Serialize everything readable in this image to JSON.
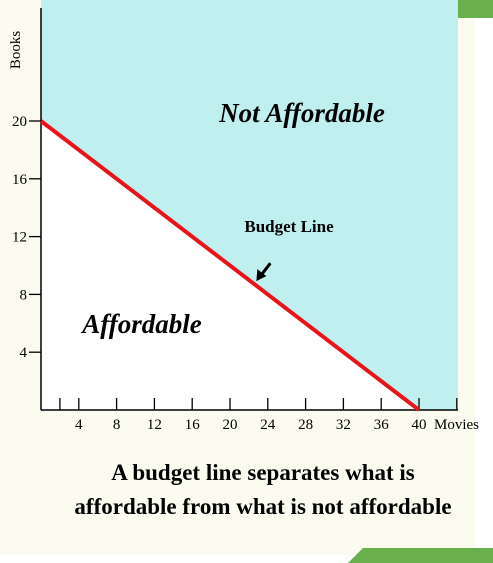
{
  "colors": {
    "not_affordable_fill": "#bfefef",
    "affordable_fill": "#ffffff",
    "budget_line": "#e8141b",
    "slide_accent": "#6ab04c",
    "background": "#fbfbf0"
  },
  "chart_data": {
    "type": "line",
    "xlabel": "Movies",
    "ylabel": "Books",
    "xlim": [
      0,
      40
    ],
    "ylim": [
      0,
      20
    ],
    "x_ticks": [
      4,
      8,
      12,
      16,
      20,
      24,
      28,
      32,
      36,
      40
    ],
    "x_tick_labels": [
      "4",
      "8",
      "12",
      "16",
      "20",
      "24",
      "28",
      "32",
      "36",
      "40"
    ],
    "y_ticks": [
      4,
      8,
      12,
      16,
      20
    ],
    "y_tick_labels": [
      "4",
      "8",
      "12",
      "16",
      "20"
    ],
    "series": [
      {
        "x": [
          0,
          40
        ],
        "y": [
          20,
          0
        ]
      }
    ],
    "regions": {
      "above": "Not Affordable",
      "below": "Affordable"
    },
    "annotation": {
      "text": "Budget Line",
      "points_to": {
        "x": 23,
        "y": 8.5
      }
    },
    "caption_lines": [
      "A budget line separates what is",
      "affordable from what is not affordable"
    ]
  }
}
